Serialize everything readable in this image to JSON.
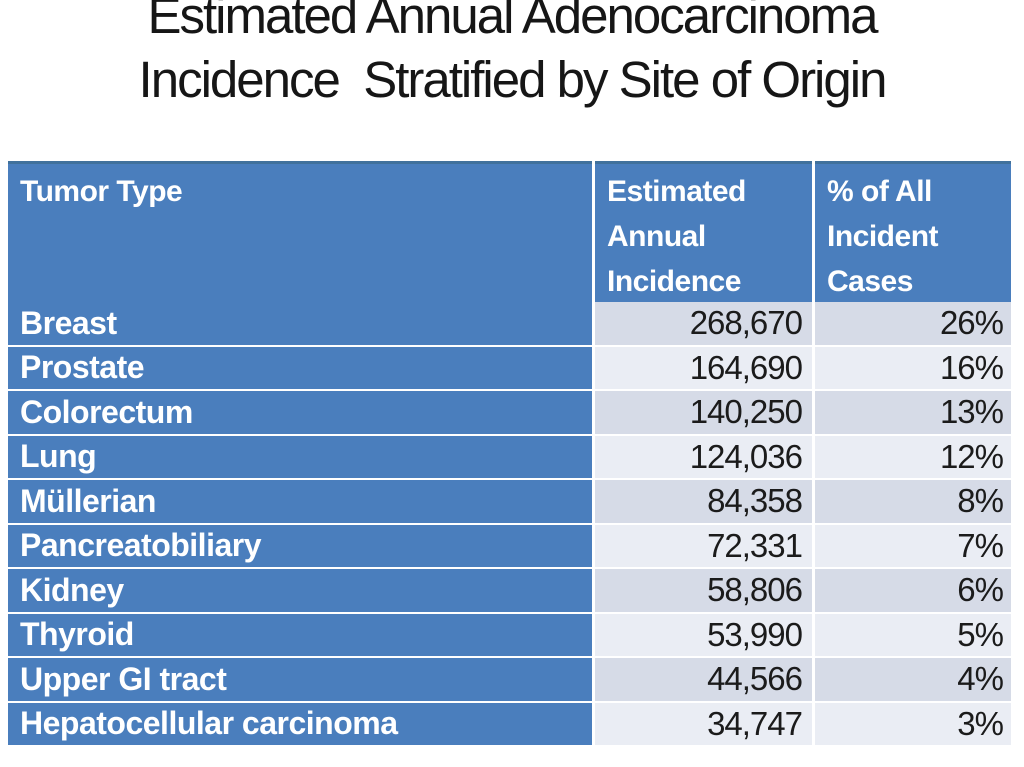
{
  "title": "Estimated Annual Adenocarcinoma\nIncidence  Stratified by Site of Origin",
  "table": {
    "headers": [
      "Tumor Type",
      "Estimated Annual Incidence",
      "% of All Incident Cases"
    ],
    "rows": [
      {
        "type": "Breast",
        "incidence": "268,670",
        "pct": "26%"
      },
      {
        "type": "Prostate",
        "incidence": "164,690",
        "pct": "16%"
      },
      {
        "type": "Colorectum",
        "incidence": "140,250",
        "pct": "13%"
      },
      {
        "type": "Lung",
        "incidence": "124,036",
        "pct": "12%"
      },
      {
        "type": "Müllerian",
        "incidence": "84,358",
        "pct": "8%"
      },
      {
        "type": "Pancreatobiliary",
        "incidence": "72,331",
        "pct": "7%"
      },
      {
        "type": "Kidney",
        "incidence": "58,806",
        "pct": "6%"
      },
      {
        "type": "Thyroid",
        "incidence": "53,990",
        "pct": "5%"
      },
      {
        "type": "Upper GI tract",
        "incidence": "44,566",
        "pct": "4%"
      },
      {
        "type": "Hepatocellular carcinoma",
        "incidence": "34,747",
        "pct": "3%"
      }
    ]
  },
  "colors": {
    "table_blue": "#4a7ebd",
    "header_top_border": "#41719c",
    "band_dark": "#d6dbe7",
    "band_light": "#eaedf4",
    "header_text": "#ffffff",
    "value_text": "#1b1b1b"
  },
  "chart_data": {
    "type": "table",
    "title": "Estimated Annual Adenocarcinoma Incidence  Stratified by Site of Origin",
    "columns": [
      "Tumor Type",
      "Estimated Annual Incidence",
      "% of All Incident Cases"
    ],
    "rows": [
      [
        "Breast",
        268670,
        "26%"
      ],
      [
        "Prostate",
        164690,
        "16%"
      ],
      [
        "Colorectum",
        140250,
        "13%"
      ],
      [
        "Lung",
        124036,
        "12%"
      ],
      [
        "Müllerian",
        84358,
        "8%"
      ],
      [
        "Pancreatobiliary",
        72331,
        "7%"
      ],
      [
        "Kidney",
        58806,
        "6%"
      ],
      [
        "Thyroid",
        53990,
        "5%"
      ],
      [
        "Upper GI tract",
        44566,
        "4%"
      ],
      [
        "Hepatocellular carcinoma",
        34747,
        "3%"
      ]
    ]
  }
}
